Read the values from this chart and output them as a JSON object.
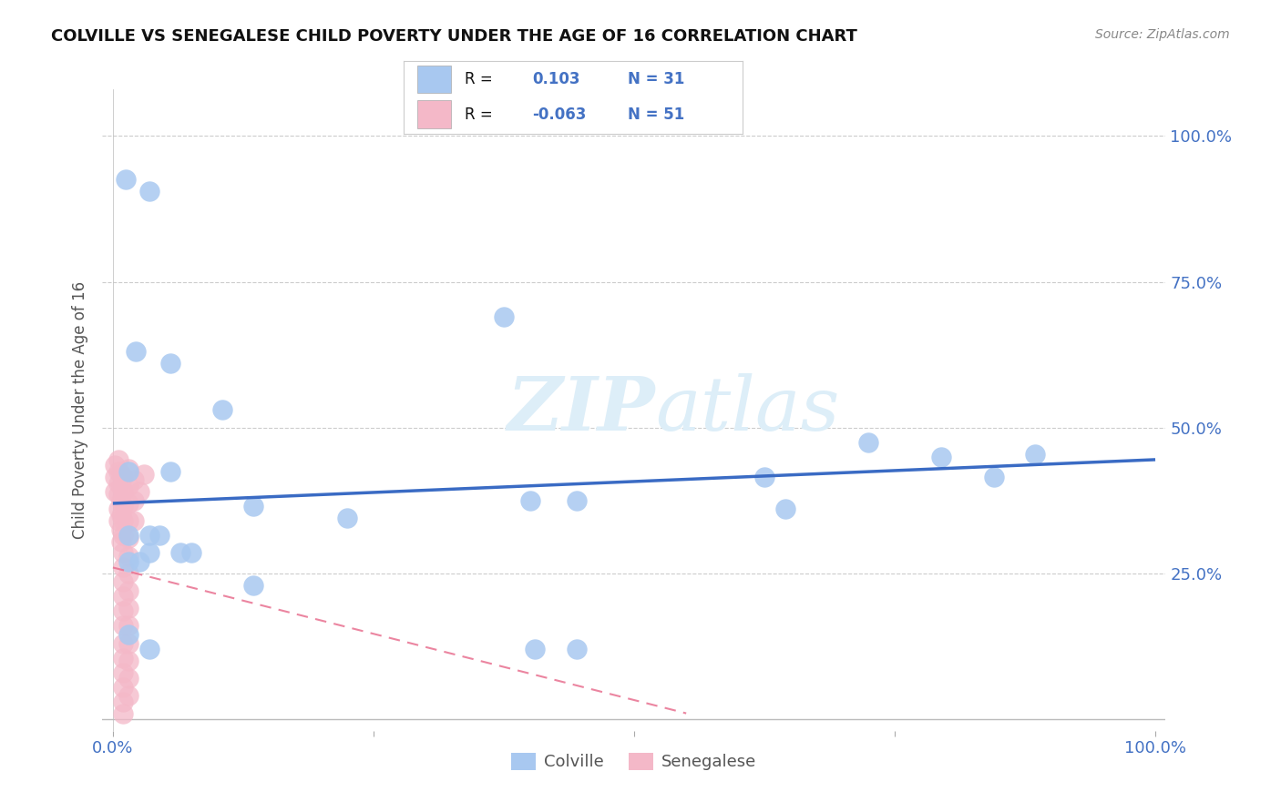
{
  "title": "COLVILLE VS SENEGALESE CHILD POVERTY UNDER THE AGE OF 16 CORRELATION CHART",
  "source": "Source: ZipAtlas.com",
  "ylabel": "Child Poverty Under the Age of 16",
  "colville_R": "0.103",
  "colville_N": "31",
  "senegalese_R": "-0.063",
  "senegalese_N": "51",
  "colville_color": "#a8c8f0",
  "senegalese_color": "#f4b8c8",
  "trend_colville_color": "#3a6bc4",
  "trend_senegalese_color": "#e87090",
  "colville_points": [
    [
      0.012,
      0.925
    ],
    [
      0.035,
      0.905
    ],
    [
      0.022,
      0.63
    ],
    [
      0.055,
      0.61
    ],
    [
      0.105,
      0.53
    ],
    [
      0.375,
      0.69
    ],
    [
      0.015,
      0.425
    ],
    [
      0.055,
      0.425
    ],
    [
      0.135,
      0.365
    ],
    [
      0.225,
      0.345
    ],
    [
      0.015,
      0.315
    ],
    [
      0.035,
      0.315
    ],
    [
      0.045,
      0.315
    ],
    [
      0.035,
      0.285
    ],
    [
      0.065,
      0.285
    ],
    [
      0.075,
      0.285
    ],
    [
      0.015,
      0.27
    ],
    [
      0.025,
      0.27
    ],
    [
      0.135,
      0.23
    ],
    [
      0.4,
      0.375
    ],
    [
      0.445,
      0.375
    ],
    [
      0.625,
      0.415
    ],
    [
      0.645,
      0.36
    ],
    [
      0.725,
      0.475
    ],
    [
      0.795,
      0.45
    ],
    [
      0.845,
      0.415
    ],
    [
      0.885,
      0.455
    ],
    [
      0.015,
      0.145
    ],
    [
      0.035,
      0.12
    ],
    [
      0.405,
      0.12
    ],
    [
      0.445,
      0.12
    ]
  ],
  "senegalese_points": [
    [
      0.002,
      0.435
    ],
    [
      0.002,
      0.415
    ],
    [
      0.002,
      0.39
    ],
    [
      0.005,
      0.445
    ],
    [
      0.005,
      0.425
    ],
    [
      0.005,
      0.405
    ],
    [
      0.005,
      0.385
    ],
    [
      0.005,
      0.36
    ],
    [
      0.005,
      0.34
    ],
    [
      0.008,
      0.42
    ],
    [
      0.008,
      0.4
    ],
    [
      0.008,
      0.375
    ],
    [
      0.008,
      0.35
    ],
    [
      0.008,
      0.325
    ],
    [
      0.008,
      0.305
    ],
    [
      0.01,
      0.415
    ],
    [
      0.01,
      0.39
    ],
    [
      0.01,
      0.365
    ],
    [
      0.01,
      0.34
    ],
    [
      0.01,
      0.315
    ],
    [
      0.01,
      0.285
    ],
    [
      0.01,
      0.26
    ],
    [
      0.01,
      0.235
    ],
    [
      0.01,
      0.21
    ],
    [
      0.01,
      0.185
    ],
    [
      0.01,
      0.16
    ],
    [
      0.01,
      0.13
    ],
    [
      0.01,
      0.105
    ],
    [
      0.01,
      0.08
    ],
    [
      0.01,
      0.055
    ],
    [
      0.01,
      0.03
    ],
    [
      0.01,
      0.01
    ],
    [
      0.015,
      0.43
    ],
    [
      0.015,
      0.4
    ],
    [
      0.015,
      0.37
    ],
    [
      0.015,
      0.34
    ],
    [
      0.015,
      0.31
    ],
    [
      0.015,
      0.28
    ],
    [
      0.015,
      0.25
    ],
    [
      0.015,
      0.22
    ],
    [
      0.015,
      0.19
    ],
    [
      0.015,
      0.16
    ],
    [
      0.015,
      0.13
    ],
    [
      0.015,
      0.1
    ],
    [
      0.015,
      0.07
    ],
    [
      0.015,
      0.04
    ],
    [
      0.02,
      0.41
    ],
    [
      0.02,
      0.375
    ],
    [
      0.02,
      0.34
    ],
    [
      0.025,
      0.39
    ],
    [
      0.03,
      0.42
    ]
  ],
  "colville_trend": [
    0.0,
    1.0,
    0.37,
    0.445
  ],
  "senegalese_trend": [
    0.0,
    0.55,
    0.26,
    0.01
  ]
}
